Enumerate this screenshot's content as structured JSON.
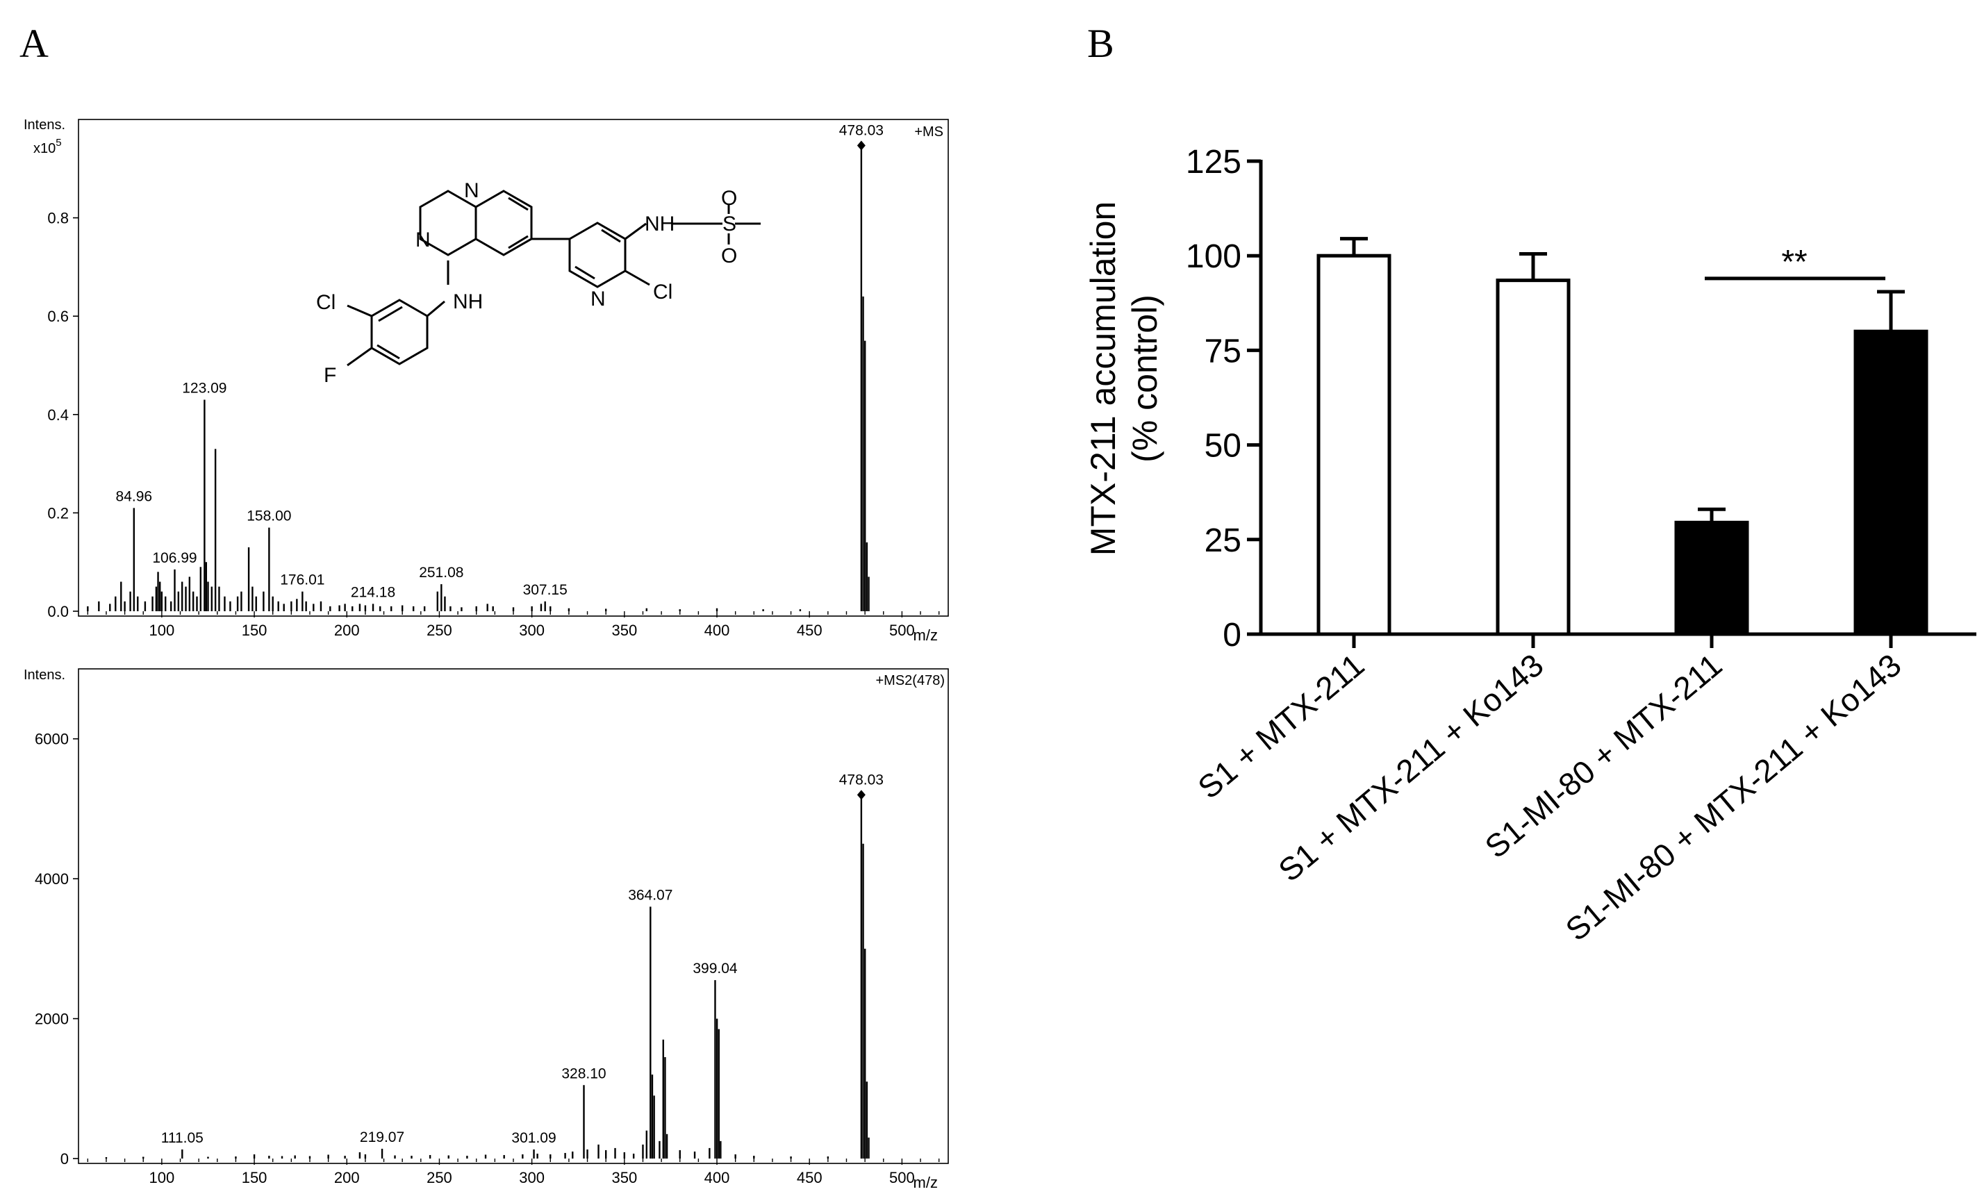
{
  "panels": {
    "a": "A",
    "b": "B"
  },
  "structure": {
    "atoms": [
      "N",
      "N",
      "NH",
      "Cl",
      "F",
      "NH",
      "S",
      "O",
      "O",
      "N",
      "Cl"
    ]
  },
  "chart_data": [
    {
      "type": "bar",
      "panel": "A-top",
      "mode_label": "+MS",
      "ylabel": "Intens.",
      "y_multiplier": "x10",
      "y_exponent": "5",
      "xlabel": "m/z",
      "xlim": [
        55,
        525
      ],
      "ylim": [
        0,
        1.0
      ],
      "x_ticks": [
        100,
        150,
        200,
        250,
        300,
        350,
        400,
        450,
        500
      ],
      "y_ticks": [
        0.0,
        0.2,
        0.4,
        0.6,
        0.8
      ],
      "y_tick_labels": [
        "0.0",
        "0.2",
        "0.4",
        "0.6",
        "0.8"
      ],
      "peaks": [
        {
          "x": 60,
          "y": 0.01
        },
        {
          "x": 66,
          "y": 0.02
        },
        {
          "x": 72,
          "y": 0.015
        },
        {
          "x": 75,
          "y": 0.03
        },
        {
          "x": 78,
          "y": 0.06
        },
        {
          "x": 80,
          "y": 0.02
        },
        {
          "x": 83,
          "y": 0.04
        },
        {
          "x": 84.96,
          "y": 0.21
        },
        {
          "x": 87,
          "y": 0.03
        },
        {
          "x": 91,
          "y": 0.02
        },
        {
          "x": 95,
          "y": 0.03
        },
        {
          "x": 97,
          "y": 0.05
        },
        {
          "x": 98,
          "y": 0.08
        },
        {
          "x": 99,
          "y": 0.06
        },
        {
          "x": 100,
          "y": 0.04
        },
        {
          "x": 102,
          "y": 0.03
        },
        {
          "x": 105,
          "y": 0.02
        },
        {
          "x": 106.99,
          "y": 0.085
        },
        {
          "x": 109,
          "y": 0.04
        },
        {
          "x": 111,
          "y": 0.06
        },
        {
          "x": 113,
          "y": 0.05
        },
        {
          "x": 115,
          "y": 0.07
        },
        {
          "x": 117,
          "y": 0.04
        },
        {
          "x": 119,
          "y": 0.03
        },
        {
          "x": 121,
          "y": 0.09
        },
        {
          "x": 123.09,
          "y": 0.43
        },
        {
          "x": 124,
          "y": 0.1
        },
        {
          "x": 125,
          "y": 0.06
        },
        {
          "x": 127,
          "y": 0.05
        },
        {
          "x": 129,
          "y": 0.33
        },
        {
          "x": 131,
          "y": 0.05
        },
        {
          "x": 134,
          "y": 0.03
        },
        {
          "x": 137,
          "y": 0.02
        },
        {
          "x": 141,
          "y": 0.03
        },
        {
          "x": 143,
          "y": 0.04
        },
        {
          "x": 147,
          "y": 0.13
        },
        {
          "x": 149,
          "y": 0.05
        },
        {
          "x": 151,
          "y": 0.03
        },
        {
          "x": 155,
          "y": 0.04
        },
        {
          "x": 158,
          "y": 0.17
        },
        {
          "x": 160,
          "y": 0.03
        },
        {
          "x": 163,
          "y": 0.02
        },
        {
          "x": 166,
          "y": 0.015
        },
        {
          "x": 170,
          "y": 0.02
        },
        {
          "x": 173,
          "y": 0.025
        },
        {
          "x": 176.01,
          "y": 0.04
        },
        {
          "x": 178,
          "y": 0.02
        },
        {
          "x": 182,
          "y": 0.015
        },
        {
          "x": 186,
          "y": 0.02
        },
        {
          "x": 191,
          "y": 0.01
        },
        {
          "x": 196,
          "y": 0.012
        },
        {
          "x": 199,
          "y": 0.015
        },
        {
          "x": 203,
          "y": 0.01
        },
        {
          "x": 207,
          "y": 0.015
        },
        {
          "x": 210,
          "y": 0.012
        },
        {
          "x": 214.18,
          "y": 0.015
        },
        {
          "x": 218,
          "y": 0.01
        },
        {
          "x": 224,
          "y": 0.01
        },
        {
          "x": 230,
          "y": 0.012
        },
        {
          "x": 236,
          "y": 0.01
        },
        {
          "x": 242,
          "y": 0.01
        },
        {
          "x": 249,
          "y": 0.04
        },
        {
          "x": 251.08,
          "y": 0.055
        },
        {
          "x": 253,
          "y": 0.03
        },
        {
          "x": 256,
          "y": 0.01
        },
        {
          "x": 262,
          "y": 0.008
        },
        {
          "x": 270,
          "y": 0.01
        },
        {
          "x": 276,
          "y": 0.015
        },
        {
          "x": 279,
          "y": 0.01
        },
        {
          "x": 290,
          "y": 0.008
        },
        {
          "x": 300,
          "y": 0.01
        },
        {
          "x": 305,
          "y": 0.015
        },
        {
          "x": 307.15,
          "y": 0.02
        },
        {
          "x": 310,
          "y": 0.01
        },
        {
          "x": 320,
          "y": 0.006
        },
        {
          "x": 340,
          "y": 0.005
        },
        {
          "x": 362,
          "y": 0.006
        },
        {
          "x": 380,
          "y": 0.004
        },
        {
          "x": 400,
          "y": 0.006
        },
        {
          "x": 425,
          "y": 0.004
        },
        {
          "x": 445,
          "y": 0.004
        },
        {
          "x": 478.03,
          "y": 0.94
        },
        {
          "x": 479.03,
          "y": 0.64
        },
        {
          "x": 480.03,
          "y": 0.55
        },
        {
          "x": 481.03,
          "y": 0.14
        },
        {
          "x": 482.03,
          "y": 0.07
        }
      ],
      "peak_labels": [
        {
          "x": 84.96,
          "y": 0.21,
          "text": "84.96"
        },
        {
          "x": 106.99,
          "y": 0.085,
          "text": "106.99"
        },
        {
          "x": 123.09,
          "y": 0.43,
          "text": "123.09"
        },
        {
          "x": 158.0,
          "y": 0.17,
          "text": "158.00"
        },
        {
          "x": 176.01,
          "y": 0.04,
          "text": "176.01"
        },
        {
          "x": 214.18,
          "y": 0.015,
          "text": "214.18"
        },
        {
          "x": 251.08,
          "y": 0.055,
          "text": "251.08"
        },
        {
          "x": 307.15,
          "y": 0.02,
          "text": "307.15"
        },
        {
          "x": 478.03,
          "y": 0.94,
          "text": "478.03",
          "precursor": true
        }
      ]
    },
    {
      "type": "bar",
      "panel": "A-bottom",
      "mode_label": "+MS2(478)",
      "ylabel": "Intens.",
      "xlabel": "m/z",
      "xlim": [
        55,
        525
      ],
      "ylim": [
        0,
        7000
      ],
      "x_ticks": [
        100,
        150,
        200,
        250,
        300,
        350,
        400,
        450,
        500
      ],
      "y_ticks": [
        0,
        2000,
        4000,
        6000
      ],
      "y_tick_labels": [
        "0",
        "2000",
        "4000",
        "6000"
      ],
      "peaks": [
        {
          "x": 70,
          "y": 20
        },
        {
          "x": 90,
          "y": 25
        },
        {
          "x": 111.05,
          "y": 130
        },
        {
          "x": 125,
          "y": 25
        },
        {
          "x": 140,
          "y": 30
        },
        {
          "x": 150,
          "y": 60
        },
        {
          "x": 158,
          "y": 40
        },
        {
          "x": 165,
          "y": 35
        },
        {
          "x": 172,
          "y": 45
        },
        {
          "x": 180,
          "y": 35
        },
        {
          "x": 190,
          "y": 55
        },
        {
          "x": 199,
          "y": 40
        },
        {
          "x": 207,
          "y": 90
        },
        {
          "x": 210,
          "y": 60
        },
        {
          "x": 219.07,
          "y": 140
        },
        {
          "x": 226,
          "y": 45
        },
        {
          "x": 235,
          "y": 40
        },
        {
          "x": 245,
          "y": 50
        },
        {
          "x": 255,
          "y": 45
        },
        {
          "x": 265,
          "y": 40
        },
        {
          "x": 275,
          "y": 55
        },
        {
          "x": 285,
          "y": 50
        },
        {
          "x": 295,
          "y": 60
        },
        {
          "x": 301.09,
          "y": 130
        },
        {
          "x": 303,
          "y": 70
        },
        {
          "x": 310,
          "y": 60
        },
        {
          "x": 318,
          "y": 80
        },
        {
          "x": 322,
          "y": 100
        },
        {
          "x": 328.1,
          "y": 1050
        },
        {
          "x": 330,
          "y": 130
        },
        {
          "x": 336,
          "y": 200
        },
        {
          "x": 340,
          "y": 120
        },
        {
          "x": 345,
          "y": 150
        },
        {
          "x": 350,
          "y": 90
        },
        {
          "x": 355,
          "y": 70
        },
        {
          "x": 360,
          "y": 200
        },
        {
          "x": 362,
          "y": 400
        },
        {
          "x": 364.07,
          "y": 3600
        },
        {
          "x": 365.07,
          "y": 1200
        },
        {
          "x": 366.07,
          "y": 900
        },
        {
          "x": 369,
          "y": 250
        },
        {
          "x": 371,
          "y": 1700
        },
        {
          "x": 372,
          "y": 1450
        },
        {
          "x": 373,
          "y": 350
        },
        {
          "x": 380,
          "y": 120
        },
        {
          "x": 388,
          "y": 100
        },
        {
          "x": 396,
          "y": 150
        },
        {
          "x": 399.04,
          "y": 2550
        },
        {
          "x": 400.04,
          "y": 2000
        },
        {
          "x": 401.04,
          "y": 1850
        },
        {
          "x": 402,
          "y": 250
        },
        {
          "x": 410,
          "y": 60
        },
        {
          "x": 420,
          "y": 40
        },
        {
          "x": 440,
          "y": 30
        },
        {
          "x": 460,
          "y": 30
        },
        {
          "x": 478.03,
          "y": 5150
        },
        {
          "x": 479.03,
          "y": 4500
        },
        {
          "x": 480.03,
          "y": 3000
        },
        {
          "x": 481.03,
          "y": 1100
        },
        {
          "x": 482.03,
          "y": 300
        }
      ],
      "peak_labels": [
        {
          "x": 111.05,
          "y": 130,
          "text": "111.05"
        },
        {
          "x": 219.07,
          "y": 140,
          "text": "219.07"
        },
        {
          "x": 301.09,
          "y": 130,
          "text": "301.09"
        },
        {
          "x": 328.1,
          "y": 1050,
          "text": "328.10"
        },
        {
          "x": 364.07,
          "y": 3600,
          "text": "364.07"
        },
        {
          "x": 399.04,
          "y": 2550,
          "text": "399.04"
        },
        {
          "x": 478.03,
          "y": 5150,
          "text": "478.03",
          "precursor": true
        }
      ]
    },
    {
      "type": "bar",
      "panel": "B",
      "categories": [
        "S1 + MTX-211",
        "S1 + MTX-211 + Ko143",
        "S1-MI-80 + MTX-211",
        "S1-MI-80 + MTX-211 + Ko143"
      ],
      "values": [
        100,
        93.5,
        29.5,
        80
      ],
      "errors": [
        4.5,
        7,
        3.5,
        10.5
      ],
      "fills": [
        "#ffffff",
        "#ffffff",
        "#000000",
        "#000000"
      ],
      "ylabel": "MTX-211 accumulation",
      "ylabel2": "(% control)",
      "ylim": [
        0,
        125
      ],
      "y_ticks": [
        0,
        25,
        50,
        75,
        100,
        125
      ],
      "y_tick_labels": [
        "0",
        "25",
        "50",
        "75",
        "100",
        "125"
      ],
      "significance": {
        "between": [
          2,
          3
        ],
        "label": "**"
      }
    }
  ]
}
